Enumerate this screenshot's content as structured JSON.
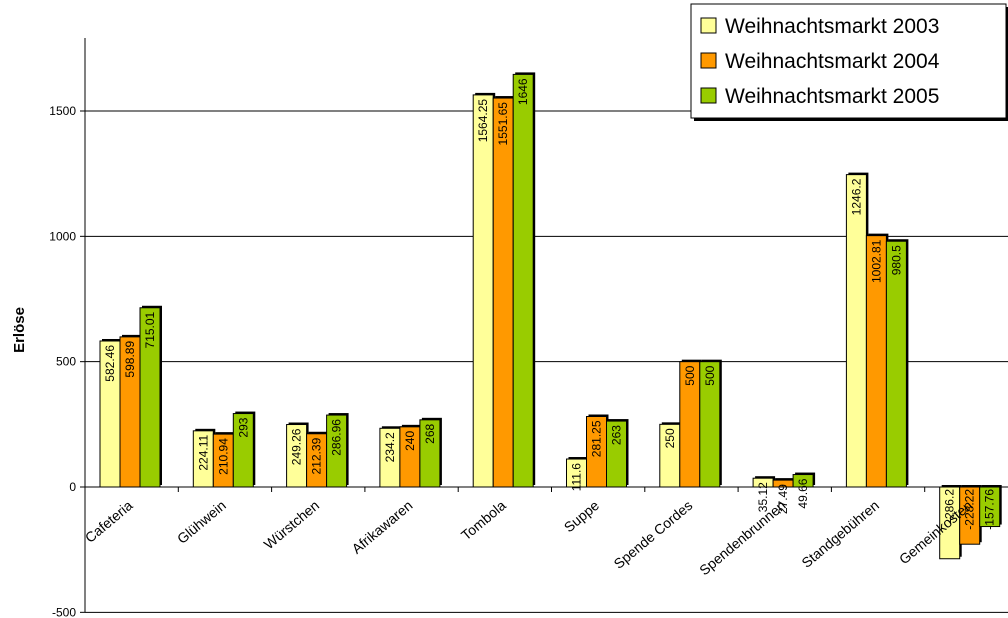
{
  "chart_data": {
    "type": "bar",
    "title": "",
    "xlabel": "",
    "ylabel": "Erlöse",
    "ylim": [
      -500,
      1800
    ],
    "yticks": [
      -500,
      0,
      500,
      1000,
      1500
    ],
    "grid": true,
    "legend_position": "top-right",
    "categories": [
      "Cafeteria",
      "Glühwein",
      "Würstchen",
      "Afrikawaren",
      "Tombola",
      "Suppe",
      "Spende Cordes",
      "Spendenbrunnen",
      "Standgebühren",
      "Gemeinkosten"
    ],
    "series": [
      {
        "name": "Weihnachtsmarkt 2003",
        "color": "#ffff99",
        "values": [
          582.46,
          224.11,
          249.26,
          234.2,
          1564.25,
          111.6,
          250,
          35.12,
          1246.2,
          -286.2
        ],
        "labels": [
          "582.46",
          "224.11",
          "249.26",
          "234.2",
          "1564.25",
          "111.6",
          "250",
          "35.12",
          "1246.2",
          "-286.2"
        ]
      },
      {
        "name": "Weihnachtsmarkt 2004",
        "color": "#ff9900",
        "values": [
          598.89,
          210.94,
          212.39,
          240,
          1551.65,
          281.25,
          500,
          27.49,
          1002.81,
          -228.22
        ],
        "labels": [
          "598.89",
          "210.94",
          "212.39",
          "240",
          "1551.65",
          "281.25",
          "500",
          "27.49",
          "1002.81",
          "-228.22"
        ]
      },
      {
        "name": "Weihnachtsmarkt 2005",
        "color": "#99cc00",
        "values": [
          715.01,
          293,
          286.96,
          268,
          1646,
          263,
          500,
          49.66,
          980.5,
          -157.76
        ],
        "labels": [
          "715.01",
          "293",
          "286.96",
          "268",
          "1646",
          "263",
          "500",
          "49.66",
          "980.5",
          "-157.76"
        ]
      }
    ]
  }
}
